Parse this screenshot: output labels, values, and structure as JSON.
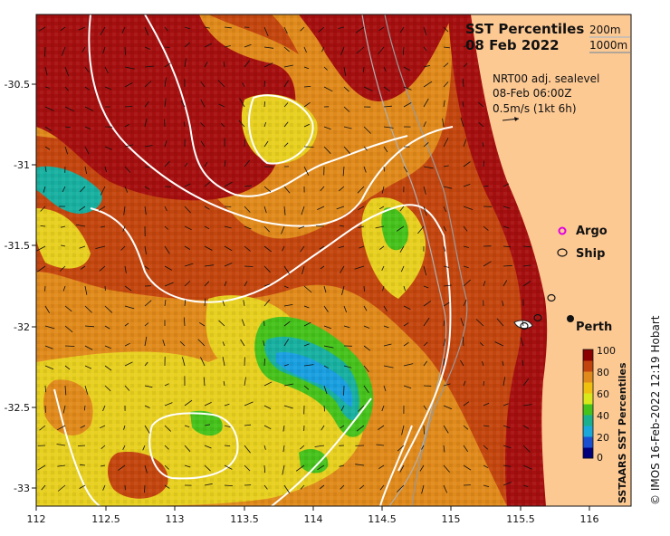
{
  "title": {
    "line1": "SST Percentiles",
    "line2": "08 Feb 2022"
  },
  "depth_legend": {
    "contour1": "200m",
    "contour2": "1000m"
  },
  "current_info": {
    "line1": "NRT00 adj. sealevel",
    "line2": "08-Feb 06:00Z",
    "line3": "0.5m/s (1kt 6h)"
  },
  "markers": {
    "argo_label": "Argo",
    "ship_label": "Ship",
    "city_label": "Perth"
  },
  "colorbar": {
    "title": "SSTAARS SST Percentiles",
    "ticks": [
      "100",
      "80",
      "60",
      "40",
      "20",
      "0"
    ],
    "colors": [
      "#8b0000",
      "#c1440e",
      "#e08a1c",
      "#f0c010",
      "#d9e81a",
      "#46c21c",
      "#1ab08e",
      "#1aa7d9",
      "#1a4fd0",
      "#00007a"
    ]
  },
  "credit": "© IMOS 16-Feb-2022 12:19 Hobart",
  "axes": {
    "x_ticks": [
      "112",
      "112.5",
      "113",
      "113.5",
      "114",
      "114.5",
      "115",
      "115.5",
      "116"
    ],
    "y_ticks": [
      "-30.5",
      "-31",
      "-31.5",
      "-32",
      "-32.5",
      "-33"
    ],
    "x_range": [
      112,
      116.3
    ],
    "y_range": [
      -30.1,
      -33.1
    ]
  },
  "colors": {
    "land": "#fdc993",
    "dark_red": "#a50f0f",
    "red_orange": "#c4460f",
    "orange": "#e08a1c",
    "yellow": "#e8d020",
    "green": "#46c21c",
    "cyan": "#18b0a0",
    "blue": "#1a9fe0"
  }
}
